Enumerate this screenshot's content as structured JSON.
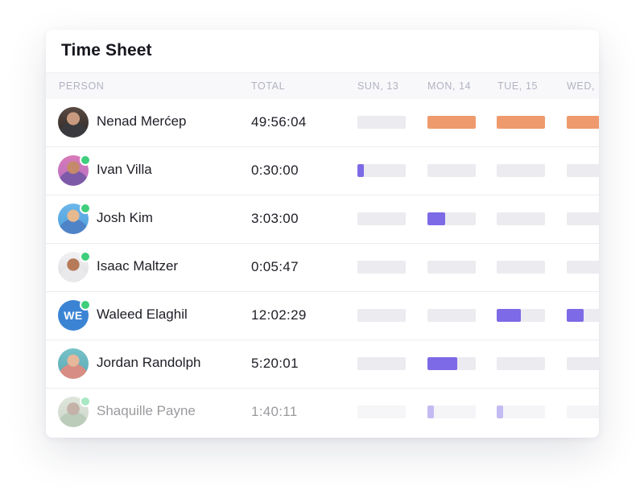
{
  "title": "Time Sheet",
  "columns": {
    "person": "PERSON",
    "total": "TOTAL",
    "days": [
      "SUN, 13",
      "MON, 14",
      "TUE, 15",
      "WED,"
    ]
  },
  "colors": {
    "orange_fill": "#ef9a6d",
    "purple_fill": "#7c6ae6",
    "track": "#ebebf0",
    "online": "#3fce7c",
    "initials_bg": "#3b84d4"
  },
  "rows": [
    {
      "name": "Nenad Merćep",
      "total": "49:56:04",
      "online": false,
      "avatar": "photo",
      "fill_color": "orange",
      "days": [
        0,
        1,
        1,
        1
      ]
    },
    {
      "name": "Ivan Villa",
      "total": "0:30:00",
      "online": true,
      "avatar": "photo",
      "fill_color": "purple",
      "days": [
        0.13,
        0,
        0,
        0
      ]
    },
    {
      "name": "Josh Kim",
      "total": "3:03:00",
      "online": true,
      "avatar": "photo",
      "fill_color": "purple",
      "days": [
        0,
        0.37,
        0,
        0
      ]
    },
    {
      "name": "Isaac Maltzer",
      "total": "0:05:47",
      "online": true,
      "avatar": "photo",
      "fill_color": "purple",
      "days": [
        0,
        0,
        0,
        0
      ]
    },
    {
      "name": "Waleed Elaghil",
      "total": "12:02:29",
      "online": true,
      "avatar": "initials",
      "initials": "WE",
      "fill_color": "purple",
      "days": [
        0,
        0,
        0.5,
        0.35
      ]
    },
    {
      "name": "Jordan Randolph",
      "total": "5:20:01",
      "online": false,
      "avatar": "photo",
      "fill_color": "purple",
      "days": [
        0,
        0.62,
        0,
        0
      ]
    },
    {
      "name": "Shaquille Payne",
      "total": "1:40:11",
      "online": true,
      "avatar": "photo",
      "fill_color": "purple",
      "days": [
        0,
        0.13,
        0.13,
        0
      ]
    }
  ]
}
